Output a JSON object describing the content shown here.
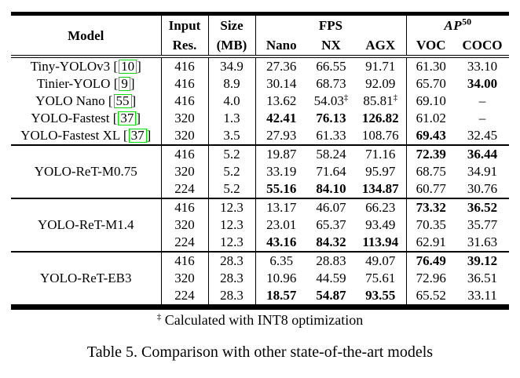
{
  "page": {
    "footnote": {
      "marker": "‡",
      "text": "Calculated with INT8 optimization"
    },
    "caption": "Table 5. Comparison with other state-of-the-art models"
  },
  "table": {
    "cite_box_color": "#00e000",
    "header": {
      "model": "Model",
      "input_res": [
        "Input",
        "Res."
      ],
      "size_mb": [
        "Size",
        "(MB)"
      ],
      "fps": "FPS",
      "fps_sub": [
        "Nano",
        "NX",
        "AGX"
      ],
      "ap50": {
        "base": "AP",
        "sup": "50"
      },
      "ap50_sub": [
        "VOC",
        "COCO"
      ]
    },
    "groups": [
      {
        "model": "Tiny-YOLOv3",
        "cite": "10",
        "rows": [
          {
            "res": "416",
            "size": "34.9",
            "fps": [
              {
                "v": "27.36"
              },
              {
                "v": "66.55"
              },
              {
                "v": "91.71"
              }
            ],
            "ap": [
              {
                "v": "61.30"
              },
              {
                "v": "33.10"
              }
            ]
          }
        ]
      },
      {
        "model": "Tinier-YOLO",
        "cite": "9",
        "rows": [
          {
            "res": "416",
            "size": "8.9",
            "fps": [
              {
                "v": "30.14"
              },
              {
                "v": "68.73"
              },
              {
                "v": "92.09"
              }
            ],
            "ap": [
              {
                "v": "65.70"
              },
              {
                "v": "34.00",
                "b": true
              }
            ]
          }
        ]
      },
      {
        "model": "YOLO Nano",
        "cite": "55",
        "rows": [
          {
            "res": "416",
            "size": "4.0",
            "fps": [
              {
                "v": "13.62"
              },
              {
                "v": "54.03",
                "sup": "‡"
              },
              {
                "v": "85.81",
                "sup": "‡"
              }
            ],
            "ap": [
              {
                "v": "69.10"
              },
              {
                "v": "–"
              }
            ]
          }
        ]
      },
      {
        "model": "YOLO-Fastest",
        "cite": "37",
        "rows": [
          {
            "res": "320",
            "size": "1.3",
            "fps": [
              {
                "v": "42.41",
                "b": true
              },
              {
                "v": "76.13",
                "b": true
              },
              {
                "v": "126.82",
                "b": true
              }
            ],
            "ap": [
              {
                "v": "61.02"
              },
              {
                "v": "–"
              }
            ]
          }
        ]
      },
      {
        "model": "YOLO-Fastest XL",
        "cite": "37",
        "rows": [
          {
            "res": "320",
            "size": "3.5",
            "fps": [
              {
                "v": "27.93"
              },
              {
                "v": "61.33"
              },
              {
                "v": "108.76"
              }
            ],
            "ap": [
              {
                "v": "69.43",
                "b": true
              },
              {
                "v": "32.45"
              }
            ]
          }
        ]
      },
      {
        "model": "YOLO-ReT-M0.75",
        "rule_above": true,
        "rows": [
          {
            "res": "416",
            "size": "5.2",
            "fps": [
              {
                "v": "19.87"
              },
              {
                "v": "58.24"
              },
              {
                "v": "71.16"
              }
            ],
            "ap": [
              {
                "v": "72.39",
                "b": true
              },
              {
                "v": "36.44",
                "b": true
              }
            ]
          },
          {
            "res": "320",
            "size": "5.2",
            "fps": [
              {
                "v": "33.19"
              },
              {
                "v": "71.64"
              },
              {
                "v": "95.97"
              }
            ],
            "ap": [
              {
                "v": "68.75"
              },
              {
                "v": "34.91"
              }
            ]
          },
          {
            "res": "224",
            "size": "5.2",
            "fps": [
              {
                "v": "55.16",
                "b": true
              },
              {
                "v": "84.10",
                "b": true
              },
              {
                "v": "134.87",
                "b": true
              }
            ],
            "ap": [
              {
                "v": "60.77"
              },
              {
                "v": "30.76"
              }
            ]
          }
        ]
      },
      {
        "model": "YOLO-ReT-M1.4",
        "rule_above": true,
        "rows": [
          {
            "res": "416",
            "size": "12.3",
            "fps": [
              {
                "v": "13.17"
              },
              {
                "v": "46.07"
              },
              {
                "v": "66.23"
              }
            ],
            "ap": [
              {
                "v": "73.32",
                "b": true
              },
              {
                "v": "36.52",
                "b": true
              }
            ]
          },
          {
            "res": "320",
            "size": "12.3",
            "fps": [
              {
                "v": "23.01"
              },
              {
                "v": "65.37"
              },
              {
                "v": "93.49"
              }
            ],
            "ap": [
              {
                "v": "70.35"
              },
              {
                "v": "35.77"
              }
            ]
          },
          {
            "res": "224",
            "size": "12.3",
            "fps": [
              {
                "v": "43.16",
                "b": true
              },
              {
                "v": "84.32",
                "b": true
              },
              {
                "v": "113.94",
                "b": true
              }
            ],
            "ap": [
              {
                "v": "62.91"
              },
              {
                "v": "31.63"
              }
            ]
          }
        ]
      },
      {
        "model": "YOLO-ReT-EB3",
        "rule_above": true,
        "rows": [
          {
            "res": "416",
            "size": "28.3",
            "fps": [
              {
                "v": "6.35"
              },
              {
                "v": "28.83"
              },
              {
                "v": "49.07"
              }
            ],
            "ap": [
              {
                "v": "76.49",
                "b": true
              },
              {
                "v": "39.12",
                "b": true
              }
            ]
          },
          {
            "res": "320",
            "size": "28.3",
            "fps": [
              {
                "v": "10.96"
              },
              {
                "v": "44.59"
              },
              {
                "v": "75.61"
              }
            ],
            "ap": [
              {
                "v": "72.96"
              },
              {
                "v": "36.51"
              }
            ]
          },
          {
            "res": "224",
            "size": "28.3",
            "fps": [
              {
                "v": "18.57",
                "b": true
              },
              {
                "v": "54.87",
                "b": true
              },
              {
                "v": "93.55",
                "b": true
              }
            ],
            "ap": [
              {
                "v": "65.52"
              },
              {
                "v": "33.11"
              }
            ]
          }
        ]
      }
    ]
  }
}
